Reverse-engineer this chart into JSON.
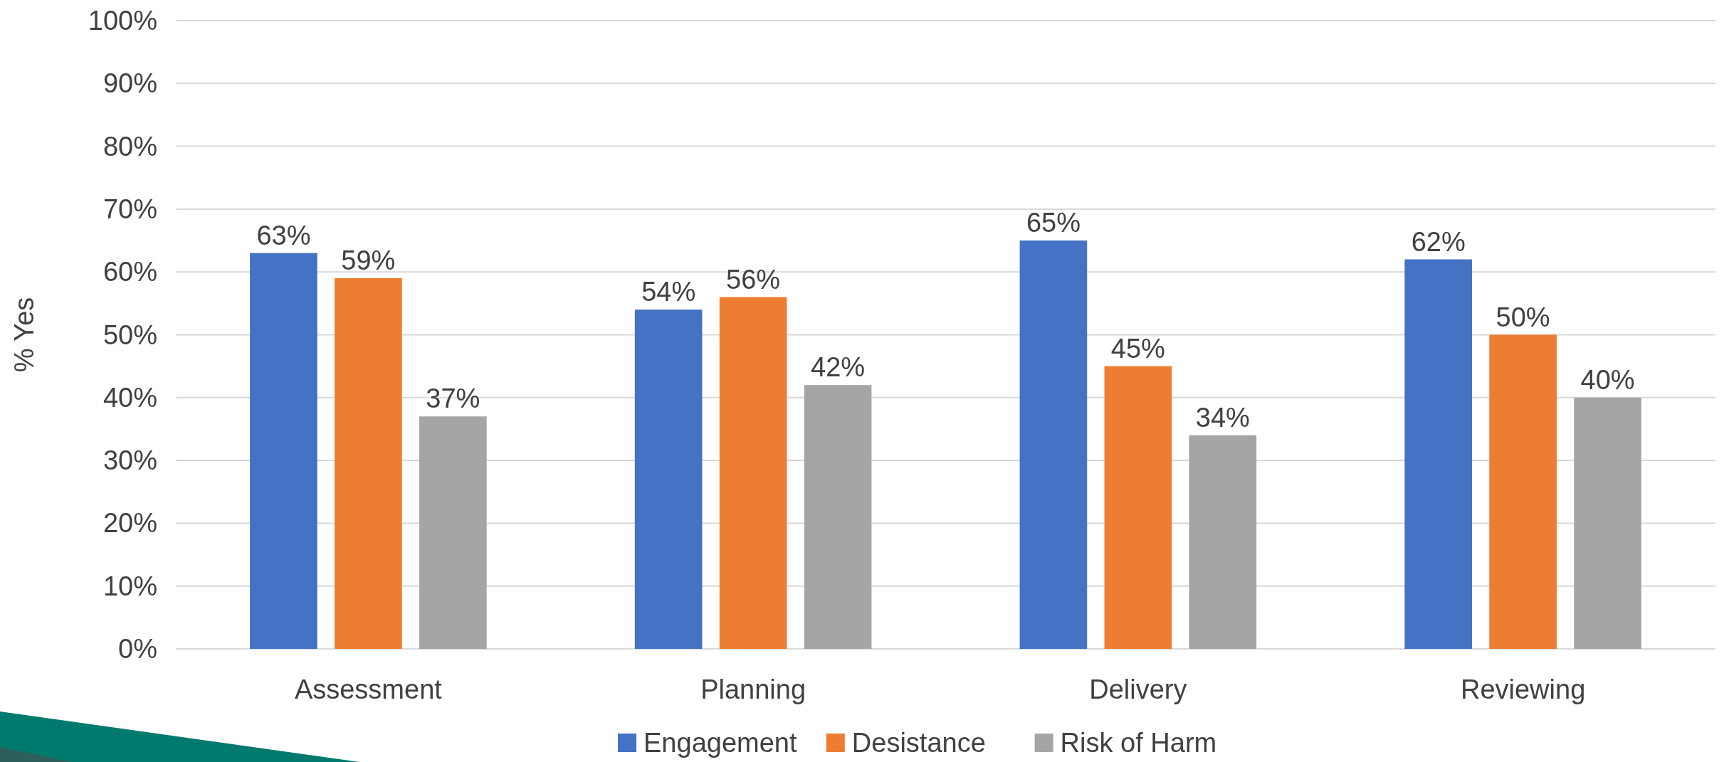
{
  "chart_data": {
    "type": "bar",
    "ylabel": "% Yes",
    "categories": [
      "Assessment",
      "Planning",
      "Delivery",
      "Reviewing"
    ],
    "series": [
      {
        "name": "Engagement",
        "color": "#4472c4",
        "values": [
          63,
          54,
          65,
          62
        ],
        "value_labels": [
          "63%",
          "54%",
          "65%",
          "62%"
        ]
      },
      {
        "name": "Desistance",
        "color": "#ed7d31",
        "values": [
          59,
          56,
          45,
          50
        ],
        "value_labels": [
          "59%",
          "56%",
          "45%",
          "50%"
        ]
      },
      {
        "name": "Risk of Harm",
        "color": "#a5a5a5",
        "values": [
          37,
          42,
          34,
          40
        ],
        "value_labels": [
          "37%",
          "42%",
          "34%",
          "40%"
        ]
      }
    ],
    "ylim": [
      0,
      100
    ],
    "yticks": [
      {
        "value": 0,
        "label": "0%"
      },
      {
        "value": 10,
        "label": "10%"
      },
      {
        "value": 20,
        "label": "20%"
      },
      {
        "value": 30,
        "label": "30%"
      },
      {
        "value": 40,
        "label": "40%"
      },
      {
        "value": 50,
        "label": "50%"
      },
      {
        "value": 60,
        "label": "60%"
      },
      {
        "value": 70,
        "label": "70%"
      },
      {
        "value": 80,
        "label": "80%"
      },
      {
        "value": 90,
        "label": "90%"
      },
      {
        "value": 100,
        "label": "100%"
      }
    ],
    "grid": "y",
    "legend": "bottom"
  }
}
